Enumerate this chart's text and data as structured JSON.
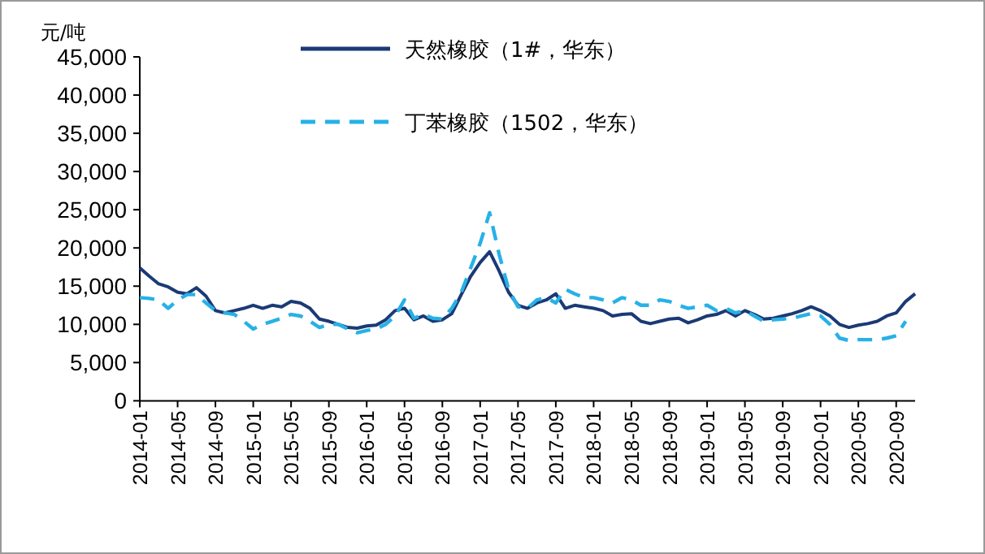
{
  "chart_data": {
    "type": "line",
    "ylabel": "元/吨",
    "legend": "top",
    "grid": false,
    "marker": "none",
    "x": [
      "2014-01",
      "2014-02",
      "2014-03",
      "2014-04",
      "2014-05",
      "2014-06",
      "2014-07",
      "2014-08",
      "2014-09",
      "2014-10",
      "2014-11",
      "2014-12",
      "2015-01",
      "2015-02",
      "2015-03",
      "2015-04",
      "2015-05",
      "2015-06",
      "2015-07",
      "2015-08",
      "2015-09",
      "2015-10",
      "2015-11",
      "2015-12",
      "2016-01",
      "2016-02",
      "2016-03",
      "2016-04",
      "2016-05",
      "2016-06",
      "2016-07",
      "2016-08",
      "2016-09",
      "2016-10",
      "2016-11",
      "2016-12",
      "2017-01",
      "2017-02",
      "2017-03",
      "2017-04",
      "2017-05",
      "2017-06",
      "2017-07",
      "2017-08",
      "2017-09",
      "2017-10",
      "2017-11",
      "2017-12",
      "2018-01",
      "2018-02",
      "2018-03",
      "2018-04",
      "2018-05",
      "2018-06",
      "2018-07",
      "2018-08",
      "2018-09",
      "2018-10",
      "2018-11",
      "2018-12",
      "2019-01",
      "2019-02",
      "2019-03",
      "2019-04",
      "2019-05",
      "2019-06",
      "2019-07",
      "2019-08",
      "2019-09",
      "2019-10",
      "2019-11",
      "2019-12",
      "2020-01",
      "2020-02",
      "2020-03",
      "2020-04",
      "2020-05",
      "2020-06",
      "2020-07",
      "2020-08",
      "2020-09",
      "2020-10",
      "2020-11"
    ],
    "xlim": [
      "2014-01",
      "2020-11"
    ],
    "xticks": [
      "2014-01",
      "2014-05",
      "2014-09",
      "2015-01",
      "2015-05",
      "2015-09",
      "2016-01",
      "2016-05",
      "2016-09",
      "2017-01",
      "2017-05",
      "2017-09",
      "2018-01",
      "2018-05",
      "2018-09",
      "2019-01",
      "2019-05",
      "2019-09",
      "2020-01",
      "2020-05",
      "2020-09"
    ],
    "ylim": [
      0,
      45000
    ],
    "yticks": [
      0,
      {
        "value": 5000,
        "label": "5,000"
      },
      {
        "value": 10000,
        "label": "10,000"
      },
      {
        "value": 15000,
        "label": "15,000"
      },
      {
        "value": 20000,
        "label": "20,000"
      },
      {
        "value": 25000,
        "label": "25,000"
      },
      {
        "value": 30000,
        "label": "30,000"
      },
      {
        "value": 35000,
        "label": "35,000"
      },
      {
        "value": 40000,
        "label": "40,000"
      },
      {
        "value": 45000,
        "label": "45,000"
      }
    ],
    "series": [
      {
        "name": "天然橡胶（1#，华东）",
        "color": "#1b3a75",
        "line_style": "solid",
        "values": [
          17400,
          16300,
          15300,
          14900,
          14200,
          14000,
          14800,
          13700,
          11800,
          11500,
          11800,
          12100,
          12500,
          12100,
          12500,
          12300,
          13000,
          12800,
          12100,
          10700,
          10400,
          10000,
          9600,
          9500,
          9800,
          9900,
          10600,
          11800,
          12100,
          10600,
          11100,
          10400,
          10600,
          11400,
          13900,
          16300,
          18100,
          19500,
          17000,
          14200,
          12500,
          12100,
          12800,
          13200,
          14000,
          12100,
          12500,
          12300,
          12100,
          11800,
          11100,
          11300,
          11400,
          10400,
          10100,
          10400,
          10700,
          10800,
          10200,
          10600,
          11100,
          11300,
          11800,
          11100,
          11800,
          11300,
          10700,
          10800,
          11100,
          11400,
          11800,
          12300,
          11800,
          11100,
          10000,
          9600,
          9900,
          10100,
          10400,
          11100,
          11500,
          13000,
          14000
        ]
      },
      {
        "name": "丁苯橡胶（1502，华东）",
        "color": "#27b1e6",
        "line_style": "dashed",
        "values": [
          13500,
          13400,
          13200,
          12100,
          13200,
          13900,
          13900,
          12800,
          11800,
          11500,
          11300,
          10400,
          9400,
          10000,
          10400,
          10800,
          11300,
          11100,
          10400,
          9600,
          10000,
          10000,
          9400,
          8900,
          9200,
          9400,
          10000,
          11100,
          13200,
          10800,
          11300,
          10800,
          10700,
          12100,
          14200,
          17400,
          20600,
          24600,
          19200,
          14600,
          12300,
          12100,
          13200,
          13500,
          12800,
          14600,
          14000,
          13500,
          13500,
          13200,
          12800,
          13500,
          13200,
          12500,
          12500,
          13200,
          13000,
          12500,
          12100,
          12300,
          12500,
          11800,
          12100,
          11500,
          11800,
          11100,
          10400,
          10600,
          10700,
          10800,
          11100,
          11400,
          11100,
          10000,
          8200,
          7900,
          8000,
          8000,
          8000,
          8200,
          8500,
          10400,
          null
        ]
      }
    ]
  }
}
